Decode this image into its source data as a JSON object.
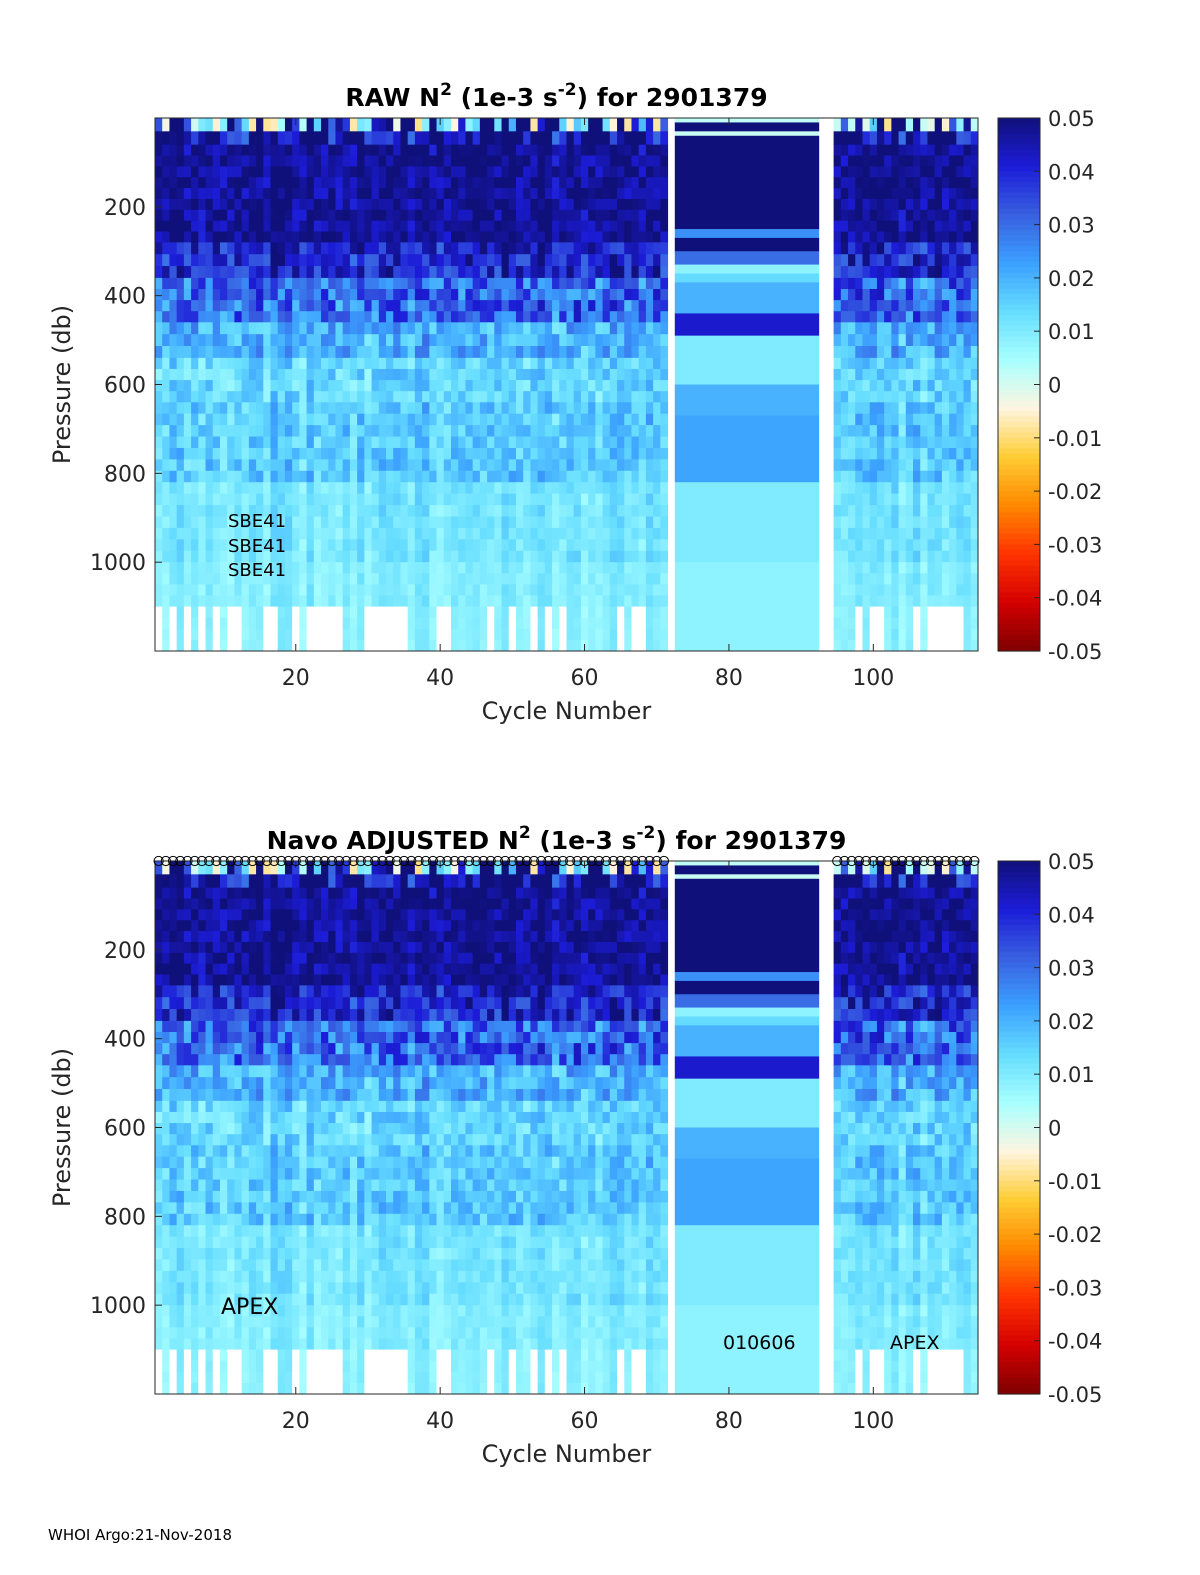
{
  "footer": "WHOI Argo:21-Nov-2018",
  "chart_data": [
    {
      "type": "heatmap",
      "title": {
        "prefix": "RAW N",
        "sup": "2",
        "mid": " (1e-3 s",
        "sup2": "-2",
        "suffix": ") for 2901379"
      },
      "xlabel": "Cycle Number",
      "ylabel": "Pressure (db)",
      "xlim": [
        1,
        114
      ],
      "ylim": [
        1200,
        0
      ],
      "xticks": [
        20,
        40,
        60,
        80,
        100
      ],
      "yticks": [
        200,
        400,
        600,
        800,
        1000
      ],
      "colorbar": {
        "min": -0.05,
        "max": 0.05,
        "ticks": [
          "0.05",
          "0.04",
          "0.03",
          "0.02",
          "0.01",
          "0",
          "-0.01",
          "-0.02",
          "-0.03",
          "-0.04",
          "-0.05"
        ]
      },
      "annotations": [
        "SBE41",
        "SBE41",
        "SBE41"
      ],
      "qc_markers": false
    },
    {
      "type": "heatmap",
      "title": {
        "prefix": "Navo  ADJUSTED N",
        "sup": "2",
        "mid": " (1e-3 s",
        "sup2": "-2",
        "suffix": ") for 2901379"
      },
      "xlabel": "Cycle Number",
      "ylabel": "Pressure (db)",
      "xlim": [
        1,
        114
      ],
      "ylim": [
        1200,
        0
      ],
      "xticks": [
        20,
        40,
        60,
        80,
        100
      ],
      "yticks": [
        200,
        400,
        600,
        800,
        1000
      ],
      "colorbar": {
        "min": -0.05,
        "max": 0.05,
        "ticks": [
          "0.05",
          "0.04",
          "0.03",
          "0.02",
          "0.01",
          "0",
          "-0.01",
          "-0.02",
          "-0.03",
          "-0.04",
          "-0.05"
        ]
      },
      "annotations": [
        "APEX",
        "010606",
        "APEX"
      ],
      "qc_markers": true
    }
  ],
  "field": {
    "colormap": [
      "#7f0000",
      "#d40000",
      "#ff3300",
      "#ff8800",
      "#ffcc33",
      "#fff5e0",
      "#a8ffff",
      "#66ddff",
      "#3ba0ff",
      "#3860e0",
      "#1c1cd8",
      "#10107a"
    ],
    "gap_cycles": [
      72,
      93,
      94
    ],
    "const_cycles": [
      73,
      92
    ],
    "const_profile": [
      [
        0,
        10,
        0.002
      ],
      [
        10,
        30,
        0.05
      ],
      [
        30,
        40,
        0.001
      ],
      [
        40,
        250,
        0.05
      ],
      [
        250,
        270,
        0.025
      ],
      [
        270,
        300,
        0.05
      ],
      [
        300,
        330,
        0.03
      ],
      [
        330,
        350,
        0.008
      ],
      [
        350,
        370,
        0.014
      ],
      [
        370,
        440,
        0.02
      ],
      [
        440,
        490,
        0.042
      ],
      [
        490,
        600,
        0.01
      ],
      [
        600,
        670,
        0.02
      ],
      [
        670,
        820,
        0.022
      ],
      [
        820,
        1000,
        0.01
      ],
      [
        1000,
        1200,
        0.008
      ]
    ],
    "bands": [
      {
        "top": 0,
        "bottom": 60,
        "value": 0.05,
        "noise": 0.02,
        "surface": true
      },
      {
        "top": 60,
        "bottom": 280,
        "value": 0.047,
        "noise": 0.006
      },
      {
        "top": 280,
        "bottom": 360,
        "value": 0.04,
        "noise": 0.01
      },
      {
        "top": 360,
        "bottom": 460,
        "value": 0.03,
        "noise": 0.012
      },
      {
        "top": 460,
        "bottom": 540,
        "value": 0.02,
        "noise": 0.008
      },
      {
        "top": 540,
        "bottom": 640,
        "value": 0.014,
        "noise": 0.006
      },
      {
        "top": 640,
        "bottom": 820,
        "value": 0.016,
        "noise": 0.006
      },
      {
        "top": 820,
        "bottom": 1000,
        "value": 0.011,
        "noise": 0.003
      },
      {
        "top": 1000,
        "bottom": 1100,
        "value": 0.009,
        "noise": 0.002
      },
      {
        "top": 1100,
        "bottom": 1200,
        "value": 0.008,
        "noise": 0.001,
        "sparse": true
      }
    ]
  }
}
